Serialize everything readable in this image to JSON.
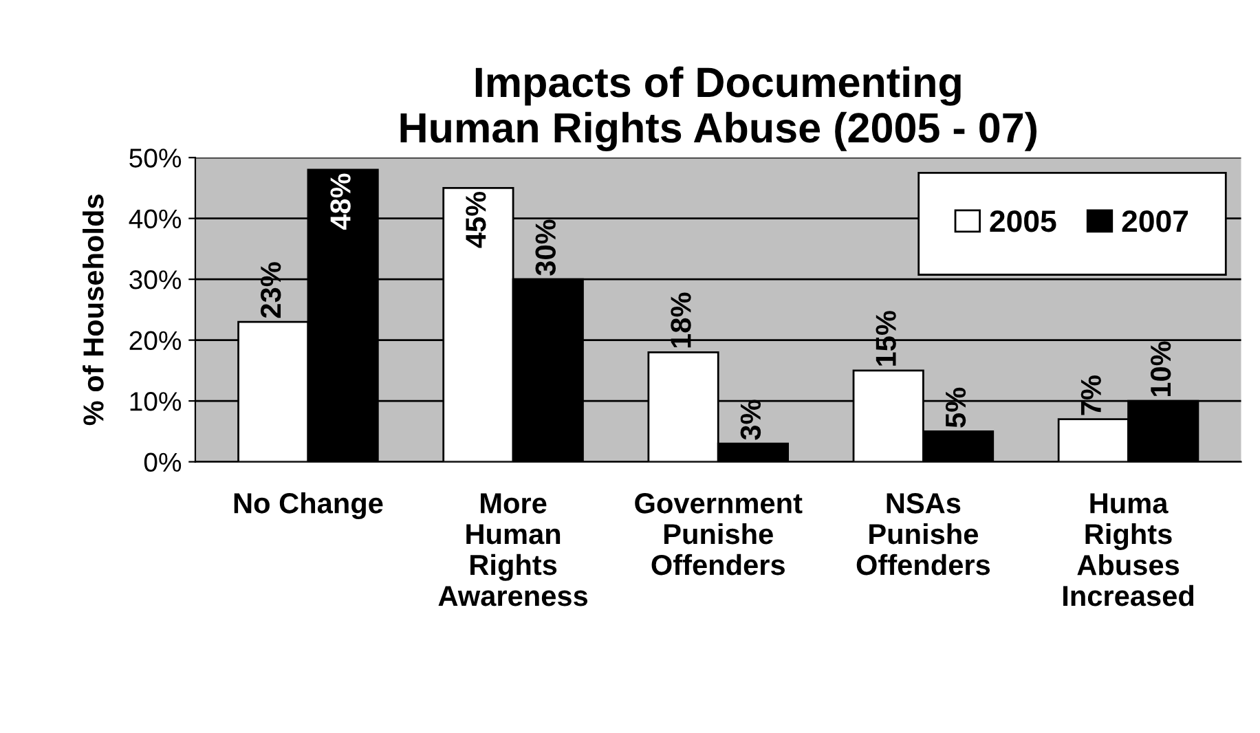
{
  "chart_data": {
    "type": "bar",
    "title": "Impacts of Documenting\nHuman Rights Abuse (2005 - 07)",
    "ylabel": "% of Households",
    "categories": [
      "No Change",
      "More\nHuman\nRights\nAwareness",
      "Government\nPunishe\nOffenders",
      "NSAs\nPunishe\nOffenders",
      "Huma\nRights\nAbuses\nIncreased"
    ],
    "series": [
      {
        "name": "2005",
        "color": "#ffffff",
        "values": [
          23,
          45,
          18,
          15,
          7
        ],
        "value_labels": [
          "23%",
          "45%",
          "18%",
          "15%",
          "7%"
        ]
      },
      {
        "name": "2007",
        "color": "#000000",
        "values": [
          48,
          30,
          3,
          5,
          10
        ],
        "value_labels": [
          "48%",
          "30%",
          "3%",
          "5%",
          "10%"
        ]
      }
    ],
    "ylim": [
      0,
      50
    ],
    "yticks": [
      {
        "value": 0,
        "label": "0%"
      },
      {
        "value": 10,
        "label": "10%"
      },
      {
        "value": 20,
        "label": "20%"
      },
      {
        "value": 30,
        "label": "30%"
      },
      {
        "value": 40,
        "label": "40%"
      },
      {
        "value": 50,
        "label": "50%"
      }
    ],
    "grid": "y",
    "legend": "top right"
  }
}
